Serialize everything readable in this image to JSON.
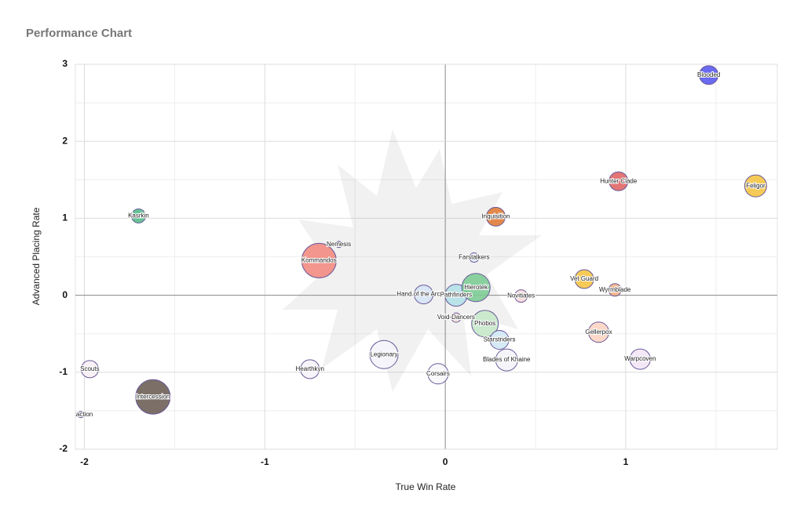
{
  "chart_data": {
    "type": "bubble",
    "title": "Performance Chart",
    "x_label": "True Win Rate",
    "y_label": "Advanced Placing Rate",
    "xlim": [
      -2.05,
      1.84
    ],
    "ylim": [
      -2,
      3
    ],
    "xticks": [
      -2,
      -1,
      0,
      1
    ],
    "yticks": [
      -2,
      -1,
      0,
      1,
      2,
      3
    ],
    "minor_xticks": [
      -1.5,
      -0.5,
      0.5,
      1.5
    ],
    "minor_yticks": [
      -1.5,
      -0.5,
      0.5,
      1.5,
      2.5
    ],
    "grid": true,
    "labels": [
      "Blooded",
      "Feligor",
      "Hunter Clade",
      "Inquisition",
      "Kasrkin",
      "Nemesis",
      "Kommandos",
      "Farstalkers",
      "Vet Guard",
      "Wyrmblade",
      "Hand of the Archon",
      "Pathfinders",
      "Hierotek",
      "Novitiates",
      "Void-Dancers",
      "Phobos",
      "Starstriders",
      "Gellerpox",
      "Blades of Khaine",
      "Warpcoven",
      "Legionary",
      "Corsairs",
      "Hearthkyn",
      "Scouts",
      "Intercession",
      "Exaction"
    ],
    "x": [
      1.46,
      1.72,
      0.96,
      0.28,
      -1.7,
      -0.59,
      -0.7,
      0.16,
      0.77,
      0.94,
      -0.12,
      0.06,
      0.17,
      0.42,
      0.06,
      0.22,
      0.3,
      0.85,
      0.34,
      1.08,
      -0.34,
      -0.04,
      -0.75,
      -1.97,
      -1.62,
      -2.02
    ],
    "values": [
      2.86,
      1.42,
      1.48,
      1.02,
      1.03,
      0.66,
      0.45,
      0.49,
      0.21,
      0.07,
      0.01,
      0.0,
      0.1,
      -0.01,
      -0.29,
      -0.37,
      -0.58,
      -0.48,
      -0.84,
      -0.83,
      -0.77,
      -1.02,
      -0.96,
      -0.96,
      -1.32,
      -1.55
    ],
    "sizes": [
      12,
      14,
      12,
      12,
      9,
      4,
      22,
      6,
      12,
      8,
      12,
      14,
      18,
      8,
      6,
      17,
      12,
      13,
      14,
      13,
      18,
      13,
      12,
      11,
      22,
      4
    ],
    "colors": [
      "#5b5bf0",
      "#f5c445",
      "#e06666",
      "#e07b39",
      "#57bb8a",
      "#b7b7b7",
      "#f28b82",
      "#dde6f7",
      "#f5c445",
      "#f4b183",
      "#d6e4f5",
      "#b4e0e8",
      "#7dcc95",
      "#f9d8d8",
      "#f4e0d6",
      "#c5e8c9",
      "#d0e8f5",
      "#fbd4c2",
      "#f4f4f8",
      "#f3e5f5",
      "#f4f4fb",
      "#f8f8fb",
      "#f6f4fa",
      "#f8f0f4",
      "#6d5f57",
      "#eeeeee"
    ]
  }
}
